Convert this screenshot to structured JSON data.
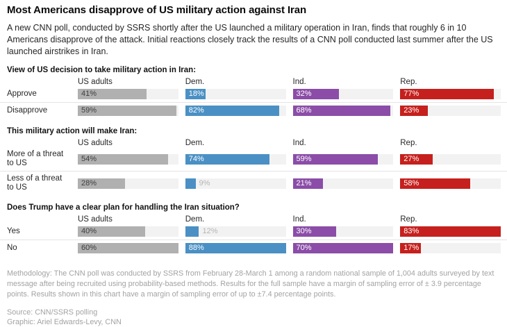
{
  "header": {
    "title": "Most Americans disapprove of US military action against Iran",
    "subtitle": "A new CNN poll, conducted by SSRS shortly after the US launched a military operation in Iran, finds that roughly 6 in 10 Americans disapprove of the attack. Initial reactions closely track the results of a CNN poll conducted last summer after the US launched airstrikes in Iran."
  },
  "chart_data": {
    "type": "bar",
    "orientation": "horizontal",
    "value_suffix": "%",
    "groups": [
      "US adults",
      "Dem.",
      "Ind.",
      "Rep."
    ],
    "group_colors": [
      "#b0b0b0",
      "#4a90c4",
      "#8b4da8",
      "#c5201d"
    ],
    "group_label_colors": [
      "#3d3d3d",
      "#ffffff",
      "#ffffff",
      "#ffffff"
    ],
    "track_color": "#f2f2f2",
    "outside_label_color": "#b5b5b5",
    "outside_label_threshold_ratio": 0.15,
    "scaling_note": "each column's bars are scaled so that the column's maximum value across all sections fills the track",
    "sections": [
      {
        "title": "View of US decision to take military action in Iran:",
        "rows": [
          {
            "label": "Approve",
            "values": [
              41,
              18,
              32,
              77
            ]
          },
          {
            "label": "Disapprove",
            "values": [
              59,
              82,
              68,
              23
            ]
          }
        ]
      },
      {
        "title": "This military action will make Iran:",
        "rows": [
          {
            "label": "More of a threat to US",
            "values": [
              54,
              74,
              59,
              27
            ]
          },
          {
            "label": "Less of a threat to US",
            "values": [
              28,
              9,
              21,
              58
            ]
          }
        ]
      },
      {
        "title": "Does Trump have a clear plan for handling the Iran situation?",
        "rows": [
          {
            "label": "Yes",
            "values": [
              40,
              12,
              30,
              83
            ]
          },
          {
            "label": "No",
            "values": [
              60,
              88,
              70,
              17
            ]
          }
        ]
      }
    ]
  },
  "footer": {
    "methodology": "Methodology: The CNN poll was conducted by SSRS from February 28-March 1 among a random national sample of 1,004 adults surveyed by text message after being recruited using probability-based methods. Results for the full sample have a margin of sampling error of ± 3.9 percentage points. Results shown in this chart have a margin of sampling error of up to ±7.4 percentage points.",
    "source": "Source: CNN/SSRS polling",
    "credit": "Graphic: Ariel Edwards-Levy, CNN"
  }
}
